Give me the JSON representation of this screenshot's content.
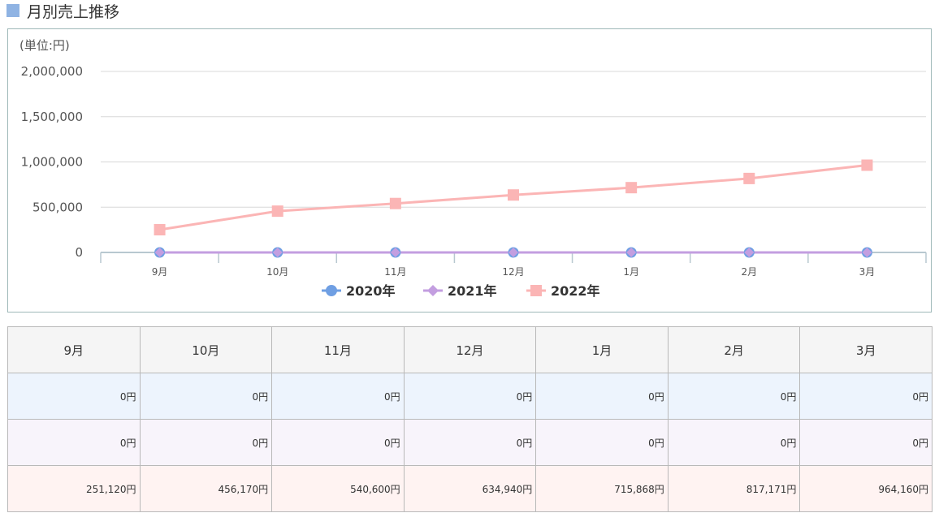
{
  "header": {
    "title": "月別売上推移"
  },
  "colors": {
    "title_square": "#8fb3e3",
    "series_2020": "#6f9fe3",
    "series_2021": "#c39ee0",
    "series_2022": "#fbb5b5"
  },
  "chart_data": {
    "type": "line",
    "unit_label": "(単位:円)",
    "categories": [
      "9月",
      "10月",
      "11月",
      "12月",
      "1月",
      "2月",
      "3月"
    ],
    "series": [
      {
        "name": "2020年",
        "marker": "circle",
        "values": [
          0,
          0,
          0,
          0,
          0,
          0,
          0
        ]
      },
      {
        "name": "2021年",
        "marker": "diamond",
        "values": [
          0,
          0,
          0,
          0,
          0,
          0,
          0
        ]
      },
      {
        "name": "2022年",
        "marker": "square",
        "values": [
          251120,
          456170,
          540600,
          634940,
          715868,
          817171,
          964160
        ]
      }
    ],
    "ylim": [
      0,
      2000000
    ],
    "yticks": [
      0,
      500000,
      1000000,
      1500000,
      2000000
    ],
    "ytick_labels": [
      "0",
      "500,000",
      "1,000,000",
      "1,500,000",
      "2,000,000"
    ],
    "grid": true,
    "legend": "bottom"
  },
  "table": {
    "headers": [
      "9月",
      "10月",
      "11月",
      "12月",
      "1月",
      "2月",
      "3月"
    ],
    "rows": [
      [
        "0円",
        "0円",
        "0円",
        "0円",
        "0円",
        "0円",
        "0円"
      ],
      [
        "0円",
        "0円",
        "0円",
        "0円",
        "0円",
        "0円",
        "0円"
      ],
      [
        "251,120円",
        "456,170円",
        "540,600円",
        "634,940円",
        "715,868円",
        "817,171円",
        "964,160円"
      ]
    ]
  }
}
